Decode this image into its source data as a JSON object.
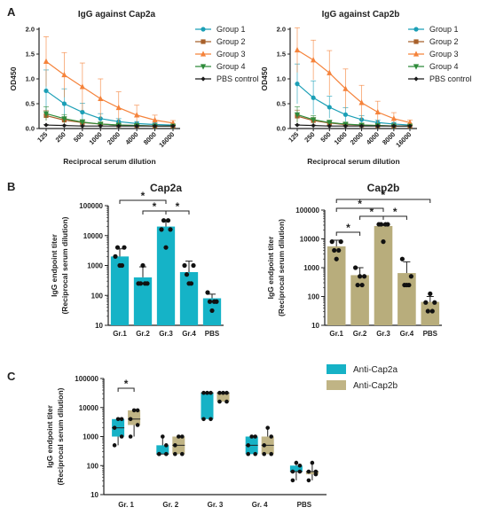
{
  "panel_letters": [
    "A",
    "B",
    "C"
  ],
  "colors": {
    "group1": "#1b9fb6",
    "group2": "#a8602a",
    "group3": "#f5833b",
    "group4": "#2e8b3a",
    "pbs": "#1a1a1a",
    "cap2a_bar": "#15b3c7",
    "cap2b_bar": "#b8ad7c",
    "cap2a_box": "#16b2c6",
    "cap2b_box": "#c0b485"
  },
  "chart_data": [
    {
      "type": "line",
      "title": "IgG against Cap2a",
      "xlabel": "Reciprocal serum dilution",
      "ylabel": "OD450",
      "x": [
        "125",
        "250",
        "500",
        "1000",
        "2000",
        "4000",
        "8000",
        "16000"
      ],
      "yticks": [
        "0.0",
        "0.5",
        "1.0",
        "1.5",
        "2.0"
      ],
      "ylim": [
        0,
        2.0
      ],
      "legend_position": "right",
      "series": [
        {
          "name": "Group 1",
          "values": [
            0.76,
            0.5,
            0.33,
            0.2,
            0.14,
            0.1,
            0.08,
            0.07
          ],
          "err": [
            0.42,
            0.3,
            0.18,
            0.1,
            0.06,
            0.04,
            0.03,
            0.02
          ],
          "marker": "circle",
          "color_key": "group1"
        },
        {
          "name": "Group 2",
          "values": [
            0.26,
            0.17,
            0.12,
            0.09,
            0.07,
            0.06,
            0.05,
            0.05
          ],
          "err": [
            0.1,
            0.06,
            0.04,
            0.03,
            0.02,
            0.02,
            0.01,
            0.01
          ],
          "marker": "square",
          "color_key": "group2"
        },
        {
          "name": "Group 3",
          "values": [
            1.35,
            1.08,
            0.84,
            0.6,
            0.42,
            0.27,
            0.17,
            0.11
          ],
          "err": [
            0.5,
            0.45,
            0.48,
            0.4,
            0.32,
            0.2,
            0.1,
            0.05
          ],
          "marker": "triangle-up",
          "color_key": "group3"
        },
        {
          "name": "Group 4",
          "values": [
            0.3,
            0.2,
            0.13,
            0.09,
            0.07,
            0.06,
            0.05,
            0.05
          ],
          "err": [
            0.14,
            0.08,
            0.05,
            0.03,
            0.02,
            0.02,
            0.01,
            0.01
          ],
          "marker": "triangle-down",
          "color_key": "group4"
        },
        {
          "name": "PBS control",
          "values": [
            0.07,
            0.06,
            0.05,
            0.05,
            0.05,
            0.05,
            0.05,
            0.05
          ],
          "err": [
            0.01,
            0.01,
            0.01,
            0.01,
            0.01,
            0.01,
            0.01,
            0.01
          ],
          "marker": "diamond",
          "color_key": "pbs"
        }
      ]
    },
    {
      "type": "line",
      "title": "IgG against Cap2b",
      "xlabel": "Reciprocal serum dilution",
      "ylabel": "OD450",
      "x": [
        "125",
        "250",
        "500",
        "1000",
        "2000",
        "4000",
        "8000",
        "16000"
      ],
      "yticks": [
        "0.0",
        "0.5",
        "1.0",
        "1.5",
        "2.0"
      ],
      "ylim": [
        0,
        2.0
      ],
      "legend_position": "right",
      "series": [
        {
          "name": "Group 1",
          "values": [
            0.9,
            0.62,
            0.43,
            0.28,
            0.18,
            0.12,
            0.09,
            0.07
          ],
          "err": [
            0.4,
            0.34,
            0.22,
            0.14,
            0.08,
            0.05,
            0.03,
            0.02
          ],
          "marker": "circle",
          "color_key": "group1"
        },
        {
          "name": "Group 2",
          "values": [
            0.25,
            0.16,
            0.11,
            0.08,
            0.07,
            0.06,
            0.05,
            0.05
          ],
          "err": [
            0.12,
            0.06,
            0.04,
            0.03,
            0.02,
            0.01,
            0.01,
            0.01
          ],
          "marker": "square",
          "color_key": "group2"
        },
        {
          "name": "Group 3",
          "values": [
            1.58,
            1.38,
            1.12,
            0.8,
            0.52,
            0.33,
            0.2,
            0.12
          ],
          "err": [
            0.45,
            0.4,
            0.45,
            0.4,
            0.35,
            0.22,
            0.12,
            0.05
          ],
          "marker": "triangle-up",
          "color_key": "group3"
        },
        {
          "name": "Group 4",
          "values": [
            0.28,
            0.18,
            0.12,
            0.09,
            0.07,
            0.06,
            0.05,
            0.05
          ],
          "err": [
            0.16,
            0.08,
            0.05,
            0.03,
            0.02,
            0.01,
            0.01,
            0.01
          ],
          "marker": "triangle-down",
          "color_key": "group4"
        },
        {
          "name": "PBS control",
          "values": [
            0.07,
            0.06,
            0.05,
            0.05,
            0.05,
            0.05,
            0.05,
            0.05
          ],
          "err": [
            0.01,
            0.01,
            0.01,
            0.01,
            0.01,
            0.01,
            0.01,
            0.01
          ],
          "marker": "diamond",
          "color_key": "pbs"
        }
      ]
    },
    {
      "type": "bar",
      "title": "Cap2a",
      "ylabel_lines": [
        "IgG endpoint titer",
        "(Reciprocal serum dilution)"
      ],
      "scale": "log",
      "ylim": [
        10,
        100000
      ],
      "yticks": [
        "10",
        "100",
        "1000",
        "10000",
        "100000"
      ],
      "categories": [
        "Gr.1",
        "Gr.2",
        "Gr.3",
        "Gr.4",
        "PBS"
      ],
      "values": [
        2000,
        400,
        20000,
        600,
        80
      ],
      "err_high": [
        3600,
        900,
        30000,
        1400,
        110
      ],
      "points": [
        [
          2000,
          4000,
          4000,
          1000,
          1000
        ],
        [
          250,
          250,
          250,
          250,
          1000
        ],
        [
          16000,
          16000,
          32000,
          32000,
          4000
        ],
        [
          1000,
          1000,
          500,
          250,
          250
        ],
        [
          125,
          62,
          62,
          62,
          31
        ]
      ],
      "color_key": "cap2a_bar",
      "significance": [
        {
          "from": "Gr.1",
          "to": "Gr.3",
          "label": "*"
        },
        {
          "from": "Gr.2",
          "to": "Gr.3",
          "label": "*"
        },
        {
          "from": "Gr.3",
          "to": "Gr.4",
          "label": "*"
        }
      ]
    },
    {
      "type": "bar",
      "title": "Cap2b",
      "ylabel_lines": [
        "IgG endpoint titer",
        "(Reciprocal serum dilution)"
      ],
      "scale": "log",
      "ylim": [
        10,
        100000
      ],
      "yticks": [
        "10",
        "100",
        "1000",
        "10000",
        "100000"
      ],
      "categories": [
        "Gr.1",
        "Gr.2",
        "Gr.3",
        "Gr.4",
        "PBS"
      ],
      "values": [
        5500,
        550,
        28000,
        650,
        65
      ],
      "err_high": [
        9000,
        1000,
        32000,
        1600,
        100
      ],
      "points": [
        [
          8000,
          8000,
          4000,
          4000,
          2000
        ],
        [
          1000,
          500,
          250,
          250,
          500
        ],
        [
          32000,
          32000,
          32000,
          32000,
          8000
        ],
        [
          2000,
          500,
          250,
          250,
          250
        ],
        [
          62,
          62,
          31,
          31,
          125
        ]
      ],
      "color_key": "cap2b_bar",
      "significance": [
        {
          "from": "Gr.1",
          "to": "Gr.5",
          "label": "*"
        },
        {
          "from": "Gr.1",
          "to": "Gr.2",
          "label": "*"
        },
        {
          "from": "Gr.1",
          "to": "Gr.3",
          "label": "*"
        },
        {
          "from": "Gr.2",
          "to": "Gr.3",
          "label": "*"
        },
        {
          "from": "Gr.3",
          "to": "Gr.4",
          "label": "*"
        }
      ]
    },
    {
      "type": "box",
      "ylabel_lines": [
        "IgG endpoint titer",
        "(Reciprocal serum dilution)"
      ],
      "scale": "log",
      "ylim": [
        10,
        100000
      ],
      "yticks": [
        "10",
        "100",
        "1000",
        "10000",
        "100000"
      ],
      "categories": [
        "Gr. 1",
        "Gr. 2",
        "Gr. 3",
        "Gr. 4",
        "PBS"
      ],
      "legend_position": "top-right",
      "series": [
        {
          "name": "Anti-Cap2a",
          "color_key": "cap2a_box",
          "boxes": [
            [
              500,
              1000,
              2000,
              4000,
              4000
            ],
            [
              250,
              250,
              250,
              500,
              1000
            ],
            [
              4000,
              4000,
              32000,
              32000,
              32000
            ],
            [
              250,
              250,
              500,
              1000,
              1000
            ],
            [
              31,
              62,
              62,
              100,
              125
            ]
          ]
        },
        {
          "name": "Anti-Cap2b",
          "color_key": "cap2b_box",
          "boxes": [
            [
              1000,
              2500,
              4000,
              8000,
              8000
            ],
            [
              250,
              250,
              500,
              1000,
              1000
            ],
            [
              16000,
              16000,
              32000,
              32000,
              32000
            ],
            [
              250,
              250,
              500,
              1000,
              2000
            ],
            [
              31,
              50,
              62,
              62,
              125
            ]
          ]
        }
      ],
      "significance": [
        {
          "from": "Gr. 1 Anti-Cap2a",
          "to": "Gr. 1 Anti-Cap2b",
          "label": "*"
        }
      ]
    }
  ]
}
